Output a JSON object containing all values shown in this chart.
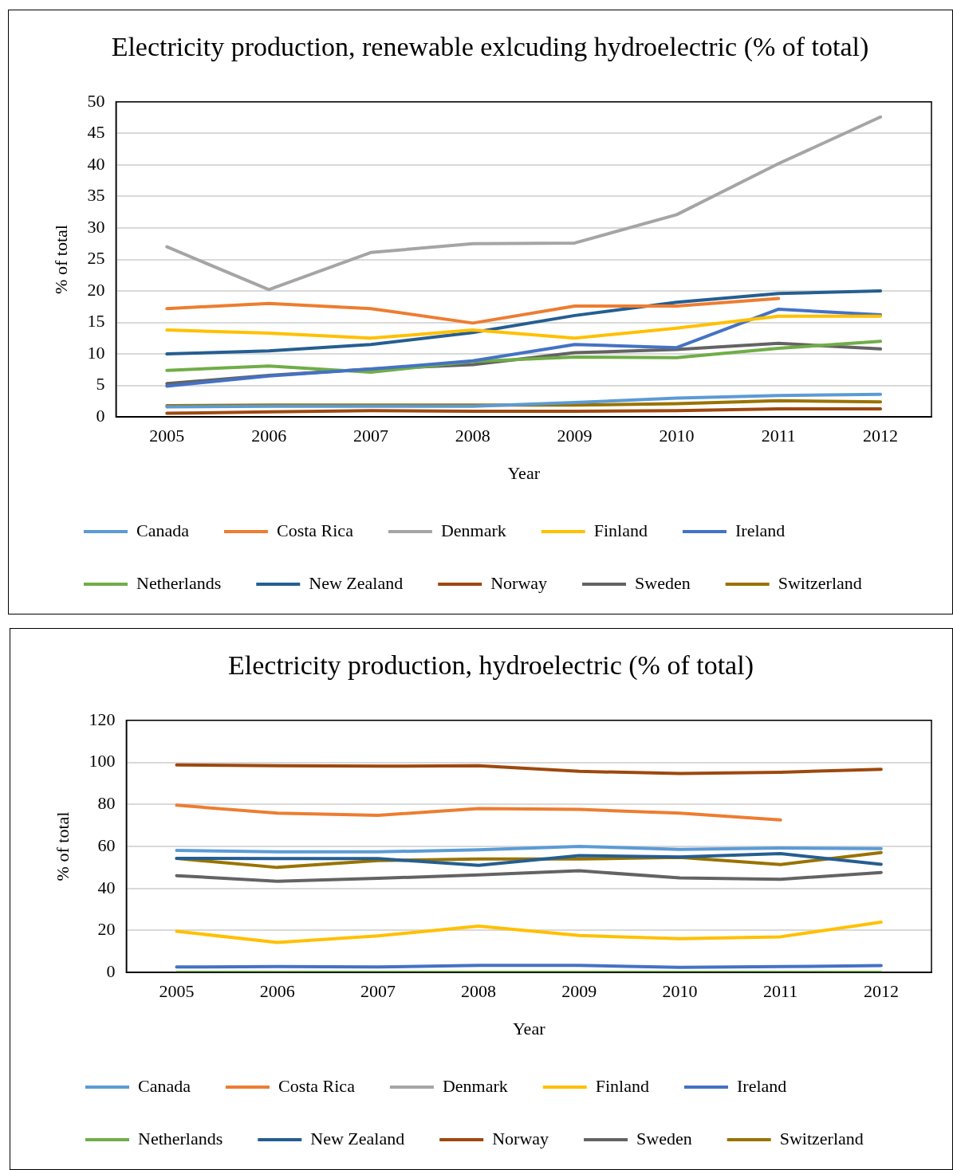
{
  "chart_data": [
    {
      "type": "line",
      "title": "Electricity production, renewable exlcuding hydroelectric (% of total)",
      "xlabel": "Year",
      "ylabel": "% of total",
      "categories": [
        "2005",
        "2006",
        "2007",
        "2008",
        "2009",
        "2010",
        "2011",
        "2012"
      ],
      "ylim": [
        0,
        50
      ],
      "yticks": [
        0,
        5,
        10,
        15,
        20,
        25,
        30,
        35,
        40,
        45,
        50
      ],
      "grid": "y",
      "legend": "bottom",
      "marker": "none",
      "line_style": "solid",
      "series": [
        {
          "name": "Canada",
          "color": "#5b9bd5",
          "values": [
            1.6,
            1.7,
            1.7,
            1.7,
            2.3,
            3.0,
            3.4,
            3.6
          ]
        },
        {
          "name": "Costa Rica",
          "color": "#ed7d31",
          "values": [
            17.2,
            18.0,
            17.2,
            14.9,
            17.6,
            17.6,
            18.8,
            null
          ]
        },
        {
          "name": "Denmark",
          "color": "#a5a5a5",
          "values": [
            27.0,
            20.2,
            26.1,
            27.5,
            27.6,
            32.1,
            40.2,
            47.6
          ]
        },
        {
          "name": "Finland",
          "color": "#ffc000",
          "values": [
            13.8,
            13.3,
            12.5,
            13.8,
            12.5,
            14.1,
            16.0,
            16.0
          ]
        },
        {
          "name": "Ireland",
          "color": "#4472c4",
          "values": [
            4.9,
            6.5,
            7.6,
            8.9,
            11.5,
            11.0,
            17.1,
            16.2
          ]
        },
        {
          "name": "Netherlands",
          "color": "#70ad47",
          "values": [
            7.4,
            8.1,
            7.1,
            8.8,
            9.5,
            9.4,
            10.9,
            12.0
          ]
        },
        {
          "name": "New Zealand",
          "color": "#255e91",
          "values": [
            10.0,
            10.5,
            11.5,
            13.4,
            16.1,
            18.2,
            19.6,
            20.0
          ]
        },
        {
          "name": "Norway",
          "color": "#9e480e",
          "values": [
            0.6,
            0.8,
            1.0,
            0.9,
            0.9,
            1.0,
            1.3,
            1.3
          ]
        },
        {
          "name": "Sweden",
          "color": "#636363",
          "values": [
            5.3,
            6.6,
            7.6,
            8.3,
            10.2,
            10.7,
            11.7,
            10.8
          ]
        },
        {
          "name": "Switzerland",
          "color": "#997300",
          "values": [
            1.8,
            1.9,
            1.9,
            1.9,
            1.9,
            2.1,
            2.6,
            2.4
          ]
        }
      ]
    },
    {
      "type": "line",
      "title": "Electricity production, hydroelectric (% of total)",
      "xlabel": "Year",
      "ylabel": "% of total",
      "categories": [
        "2005",
        "2006",
        "2007",
        "2008",
        "2009",
        "2010",
        "2011",
        "2012"
      ],
      "ylim": [
        0,
        120
      ],
      "yticks": [
        0,
        20,
        40,
        60,
        80,
        100,
        120
      ],
      "grid": "y",
      "legend": "bottom",
      "marker": "none",
      "line_style": "solid",
      "series": [
        {
          "name": "Canada",
          "color": "#5b9bd5",
          "values": [
            58.1,
            57.4,
            57.4,
            58.4,
            60.0,
            58.6,
            59.2,
            59.0
          ]
        },
        {
          "name": "Costa Rica",
          "color": "#ed7d31",
          "values": [
            79.6,
            75.8,
            74.8,
            78.0,
            77.6,
            75.8,
            72.6,
            null
          ]
        },
        {
          "name": "Denmark",
          "color": "#a5a5a5",
          "values": [
            null,
            null,
            null,
            null,
            null,
            null,
            null,
            null
          ]
        },
        {
          "name": "Finland",
          "color": "#ffc000",
          "values": [
            19.6,
            14.3,
            17.4,
            22.1,
            17.6,
            16.1,
            17.0,
            24.0
          ]
        },
        {
          "name": "Ireland",
          "color": "#4472c4",
          "values": [
            2.6,
            2.8,
            2.6,
            3.4,
            3.4,
            2.4,
            2.8,
            3.3
          ]
        },
        {
          "name": "Netherlands",
          "color": "#70ad47",
          "values": [
            0.1,
            0.1,
            0.1,
            0.1,
            0.1,
            0.1,
            0.1,
            0.1
          ]
        },
        {
          "name": "New Zealand",
          "color": "#255e91",
          "values": [
            54.3,
            54.2,
            54.2,
            51.0,
            55.6,
            55.0,
            56.6,
            51.5
          ]
        },
        {
          "name": "Norway",
          "color": "#9e480e",
          "values": [
            98.8,
            98.4,
            98.2,
            98.4,
            95.7,
            94.7,
            95.3,
            96.7
          ]
        },
        {
          "name": "Sweden",
          "color": "#636363",
          "values": [
            46.1,
            43.4,
            44.8,
            46.4,
            48.4,
            45.0,
            44.4,
            47.6
          ]
        },
        {
          "name": "Switzerland",
          "color": "#997300",
          "values": [
            54.3,
            50.0,
            53.3,
            54.0,
            54.0,
            54.8,
            51.4,
            57.1
          ]
        }
      ]
    }
  ]
}
